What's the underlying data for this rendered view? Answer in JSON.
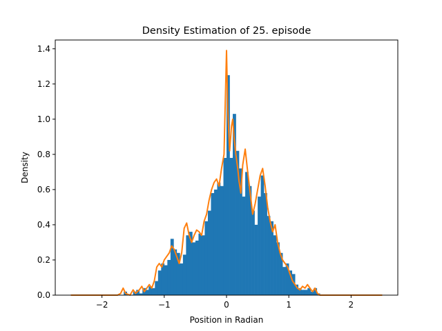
{
  "chart_data": {
    "type": "bar",
    "title": "Density Estimation of 25. episode",
    "xlabel": "Position in Radian",
    "ylabel": "Density",
    "xlim": [
      -2.75,
      2.75
    ],
    "ylim": [
      0,
      1.45
    ],
    "x_ticks": [
      -2,
      -1,
      0,
      1,
      2
    ],
    "x_tick_labels": [
      "−2",
      "−1",
      "0",
      "1",
      "2"
    ],
    "y_ticks": [
      0.0,
      0.2,
      0.4,
      0.6,
      0.8,
      1.0,
      1.2,
      1.4
    ],
    "y_tick_labels": [
      "0.0",
      "0.2",
      "0.4",
      "0.6",
      "0.8",
      "1.0",
      "1.2",
      "1.4"
    ],
    "grid": false,
    "histogram": {
      "color": "#1f77b4",
      "bin_width": 0.05,
      "bins": [
        [
          -1.65,
          0.02
        ],
        [
          -1.6,
          0.0
        ],
        [
          -1.55,
          0.0
        ],
        [
          -1.5,
          0.02
        ],
        [
          -1.45,
          0.03
        ],
        [
          -1.4,
          0.01
        ],
        [
          -1.35,
          0.04
        ],
        [
          -1.3,
          0.03
        ],
        [
          -1.25,
          0.05
        ],
        [
          -1.2,
          0.04
        ],
        [
          -1.15,
          0.08
        ],
        [
          -1.1,
          0.14
        ],
        [
          -1.05,
          0.18
        ],
        [
          -1.0,
          0.17
        ],
        [
          -0.95,
          0.2
        ],
        [
          -0.9,
          0.32
        ],
        [
          -0.85,
          0.26
        ],
        [
          -0.8,
          0.24
        ],
        [
          -0.75,
          0.18
        ],
        [
          -0.7,
          0.23
        ],
        [
          -0.65,
          0.34
        ],
        [
          -0.6,
          0.36
        ],
        [
          -0.55,
          0.3
        ],
        [
          -0.5,
          0.31
        ],
        [
          -0.45,
          0.35
        ],
        [
          -0.4,
          0.34
        ],
        [
          -0.35,
          0.42
        ],
        [
          -0.3,
          0.48
        ],
        [
          -0.25,
          0.58
        ],
        [
          -0.2,
          0.6
        ],
        [
          -0.15,
          0.64
        ],
        [
          -0.1,
          0.62
        ],
        [
          -0.05,
          0.78
        ],
        [
          0.0,
          1.25
        ],
        [
          0.05,
          0.78
        ],
        [
          0.1,
          1.03
        ],
        [
          0.15,
          0.82
        ],
        [
          0.2,
          0.72
        ],
        [
          0.25,
          0.56
        ],
        [
          0.3,
          0.7
        ],
        [
          0.35,
          0.62
        ],
        [
          0.4,
          0.48
        ],
        [
          0.45,
          0.4
        ],
        [
          0.5,
          0.56
        ],
        [
          0.55,
          0.68
        ],
        [
          0.6,
          0.58
        ],
        [
          0.65,
          0.45
        ],
        [
          0.7,
          0.42
        ],
        [
          0.75,
          0.34
        ],
        [
          0.8,
          0.3
        ],
        [
          0.85,
          0.24
        ],
        [
          0.9,
          0.16
        ],
        [
          0.95,
          0.18
        ],
        [
          1.0,
          0.14
        ],
        [
          1.05,
          0.12
        ],
        [
          1.1,
          0.06
        ],
        [
          1.15,
          0.04
        ],
        [
          1.2,
          0.03
        ],
        [
          1.25,
          0.03
        ],
        [
          1.3,
          0.04
        ],
        [
          1.35,
          0.02
        ],
        [
          1.4,
          0.04
        ],
        [
          1.45,
          0.01
        ]
      ]
    },
    "kde": {
      "color": "#ff7f0e",
      "points": [
        [
          -2.5,
          0.0
        ],
        [
          -1.75,
          0.0
        ],
        [
          -1.7,
          0.01
        ],
        [
          -1.66,
          0.04
        ],
        [
          -1.62,
          0.01
        ],
        [
          -1.55,
          0.0
        ],
        [
          -1.5,
          0.03
        ],
        [
          -1.46,
          0.01
        ],
        [
          -1.4,
          0.03
        ],
        [
          -1.36,
          0.05
        ],
        [
          -1.32,
          0.02
        ],
        [
          -1.28,
          0.04
        ],
        [
          -1.24,
          0.06
        ],
        [
          -1.2,
          0.04
        ],
        [
          -1.16,
          0.08
        ],
        [
          -1.12,
          0.16
        ],
        [
          -1.08,
          0.18
        ],
        [
          -1.04,
          0.16
        ],
        [
          -1.0,
          0.2
        ],
        [
          -0.96,
          0.22
        ],
        [
          -0.92,
          0.24
        ],
        [
          -0.88,
          0.28
        ],
        [
          -0.84,
          0.26
        ],
        [
          -0.8,
          0.22
        ],
        [
          -0.76,
          0.18
        ],
        [
          -0.72,
          0.24
        ],
        [
          -0.68,
          0.38
        ],
        [
          -0.64,
          0.41
        ],
        [
          -0.6,
          0.34
        ],
        [
          -0.56,
          0.3
        ],
        [
          -0.52,
          0.34
        ],
        [
          -0.48,
          0.37
        ],
        [
          -0.44,
          0.36
        ],
        [
          -0.4,
          0.34
        ],
        [
          -0.36,
          0.42
        ],
        [
          -0.32,
          0.46
        ],
        [
          -0.28,
          0.54
        ],
        [
          -0.24,
          0.6
        ],
        [
          -0.2,
          0.64
        ],
        [
          -0.16,
          0.66
        ],
        [
          -0.12,
          0.62
        ],
        [
          -0.08,
          0.72
        ],
        [
          -0.04,
          0.8
        ],
        [
          -0.02,
          1.1
        ],
        [
          0.0,
          1.39
        ],
        [
          0.02,
          1.05
        ],
        [
          0.05,
          0.82
        ],
        [
          0.08,
          0.96
        ],
        [
          0.1,
          1.0
        ],
        [
          0.12,
          0.9
        ],
        [
          0.15,
          0.8
        ],
        [
          0.18,
          0.72
        ],
        [
          0.2,
          0.65
        ],
        [
          0.23,
          0.58
        ],
        [
          0.26,
          0.74
        ],
        [
          0.3,
          0.83
        ],
        [
          0.34,
          0.7
        ],
        [
          0.38,
          0.58
        ],
        [
          0.42,
          0.46
        ],
        [
          0.46,
          0.52
        ],
        [
          0.5,
          0.6
        ],
        [
          0.54,
          0.68
        ],
        [
          0.58,
          0.72
        ],
        [
          0.62,
          0.62
        ],
        [
          0.66,
          0.5
        ],
        [
          0.7,
          0.42
        ],
        [
          0.74,
          0.36
        ],
        [
          0.78,
          0.4
        ],
        [
          0.82,
          0.3
        ],
        [
          0.86,
          0.24
        ],
        [
          0.9,
          0.2
        ],
        [
          0.94,
          0.18
        ],
        [
          0.98,
          0.16
        ],
        [
          1.02,
          0.12
        ],
        [
          1.06,
          0.08
        ],
        [
          1.1,
          0.06
        ],
        [
          1.14,
          0.04
        ],
        [
          1.18,
          0.03
        ],
        [
          1.22,
          0.05
        ],
        [
          1.26,
          0.04
        ],
        [
          1.3,
          0.06
        ],
        [
          1.34,
          0.04
        ],
        [
          1.38,
          0.02
        ],
        [
          1.42,
          0.04
        ],
        [
          1.46,
          0.01
        ],
        [
          1.5,
          0.0
        ],
        [
          2.5,
          0.0
        ]
      ]
    }
  }
}
